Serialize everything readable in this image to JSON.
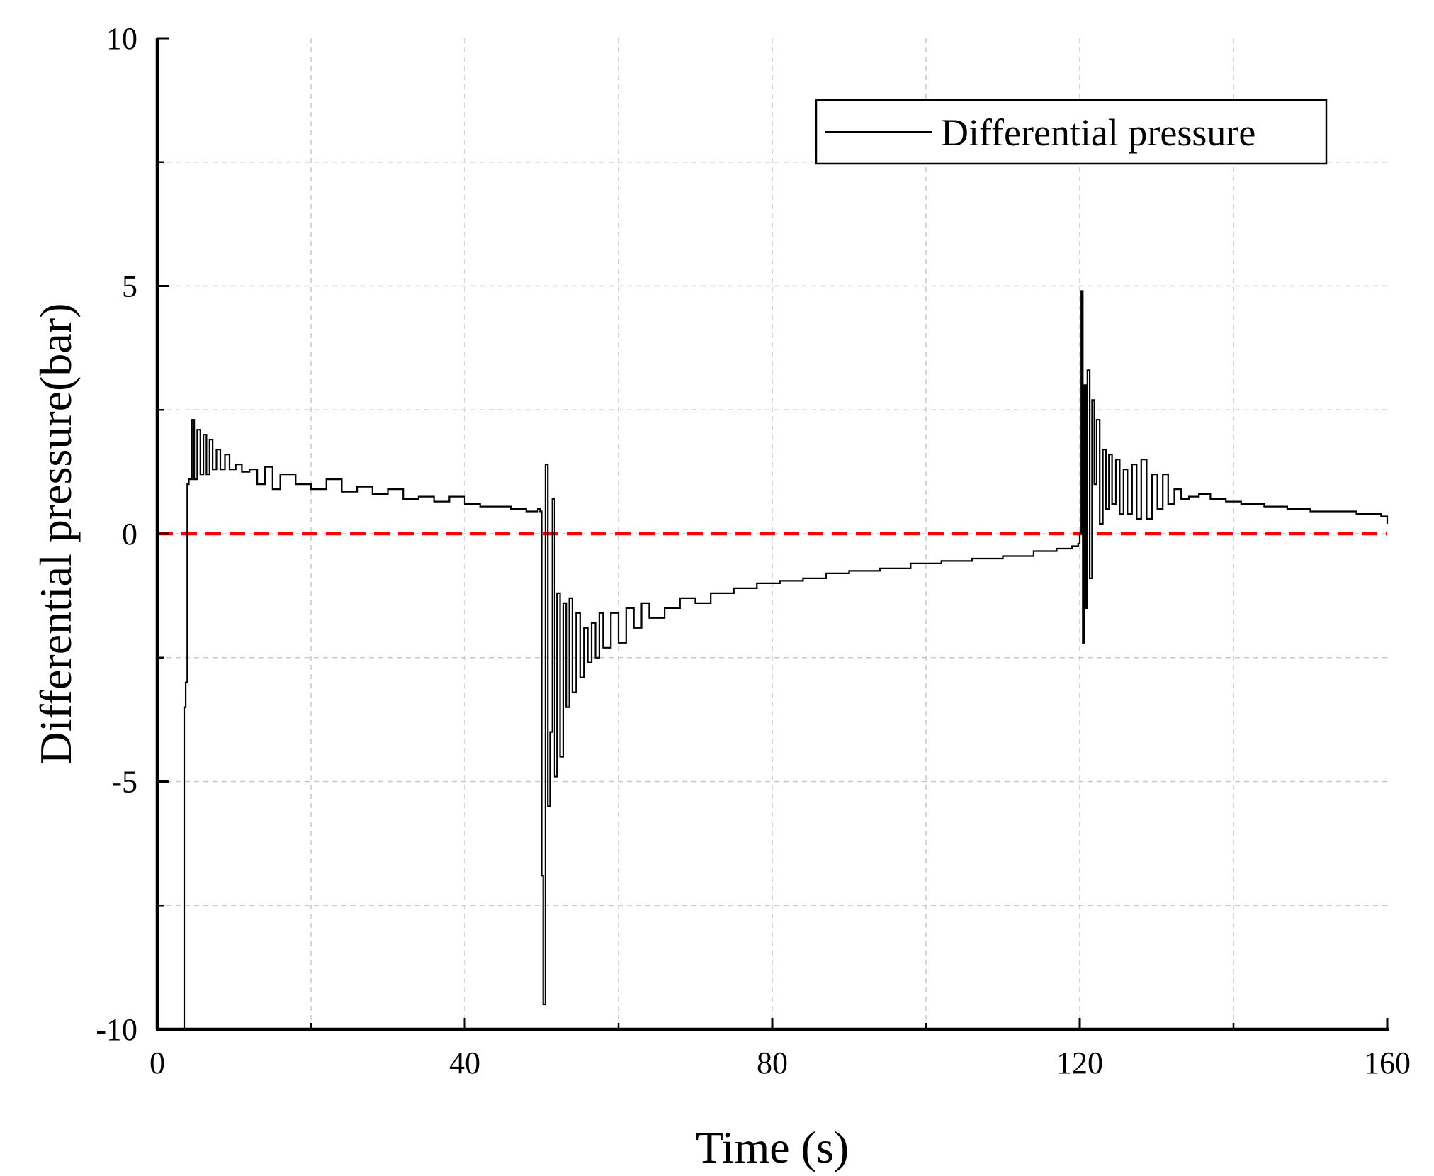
{
  "chart_data": {
    "type": "line",
    "title": "",
    "xlabel": "Time (s)",
    "ylabel": "Differential pressure(bar)",
    "xlim": [
      0,
      160
    ],
    "ylim": [
      -10,
      10
    ],
    "x_ticks": [
      0,
      40,
      80,
      120,
      160
    ],
    "y_ticks": [
      -10,
      -5,
      0,
      5,
      10
    ],
    "x_minor_ticks": [
      20,
      60,
      100,
      140
    ],
    "y_minor_ticks": [
      -7.5,
      -2.5,
      2.5,
      7.5
    ],
    "grid": true,
    "legend_position": "top-right",
    "reference_line": {
      "y": 0,
      "color": "#ff0000",
      "style": "dashed"
    },
    "series": [
      {
        "name": "Differential pressure",
        "color": "#000000",
        "x": [
          0,
          3.4,
          3.5,
          3.7,
          3.9,
          4.1,
          4.5,
          4.8,
          5.2,
          5.6,
          6.0,
          6.4,
          6.8,
          7.2,
          7.7,
          8.2,
          8.8,
          9.4,
          10.2,
          11.0,
          12.0,
          13.0,
          14.0,
          15.0,
          16.0,
          18.0,
          20.0,
          22.0,
          24.0,
          26.0,
          28.0,
          30.0,
          32.0,
          34.0,
          36.0,
          38.0,
          40.0,
          42.0,
          44.0,
          46.0,
          48.0,
          49.5,
          49.8,
          50.0,
          50.2,
          50.5,
          50.8,
          51.1,
          51.4,
          51.7,
          52.0,
          52.4,
          52.8,
          53.2,
          53.6,
          54.0,
          54.5,
          55.0,
          55.5,
          56.0,
          56.5,
          57.0,
          57.5,
          58.0,
          59.0,
          60.0,
          61.0,
          62.0,
          63.0,
          64.0,
          66.0,
          68.0,
          70.0,
          72.0,
          75.0,
          78.0,
          81.0,
          84.0,
          87.0,
          90.0,
          94.0,
          98.0,
          102.0,
          106.0,
          110.0,
          114.0,
          117.0,
          119.0,
          119.8,
          120.0,
          120.2,
          120.4,
          120.6,
          120.8,
          121.0,
          121.3,
          121.6,
          121.9,
          122.2,
          122.6,
          123.0,
          123.4,
          123.8,
          124.2,
          124.7,
          125.2,
          125.7,
          126.2,
          126.8,
          127.4,
          128.0,
          128.7,
          129.4,
          130.1,
          130.8,
          131.5,
          132.3,
          133.2,
          134.2,
          135.5,
          137.0,
          139.0,
          141.0,
          144.0,
          147.0,
          150.0,
          153.0,
          156.0,
          158.5,
          159.2,
          160.0
        ],
        "y": [
          -10,
          -10,
          -3.5,
          -3.0,
          1.0,
          1.1,
          2.3,
          1.1,
          2.1,
          1.2,
          2.0,
          1.2,
          1.9,
          1.3,
          1.7,
          1.3,
          1.6,
          1.3,
          1.4,
          1.25,
          1.3,
          1.0,
          1.35,
          0.9,
          1.2,
          1.0,
          0.9,
          1.1,
          0.85,
          0.95,
          0.8,
          0.9,
          0.7,
          0.75,
          0.65,
          0.75,
          0.6,
          0.55,
          0.55,
          0.5,
          0.45,
          0.5,
          0.45,
          -6.9,
          -9.5,
          1.4,
          -5.5,
          -4.0,
          0.7,
          -4.9,
          -1.2,
          -4.5,
          -1.4,
          -3.5,
          -1.3,
          -3.2,
          -1.6,
          -2.9,
          -1.9,
          -2.6,
          -1.8,
          -2.5,
          -1.6,
          -2.3,
          -1.6,
          -2.2,
          -1.5,
          -1.9,
          -1.4,
          -1.7,
          -1.5,
          -1.3,
          -1.4,
          -1.2,
          -1.1,
          -1.0,
          -0.95,
          -0.9,
          -0.8,
          -0.75,
          -0.7,
          -0.6,
          -0.55,
          -0.5,
          -0.45,
          -0.35,
          -0.3,
          -0.25,
          -0.2,
          0.0,
          4.9,
          -2.2,
          3.0,
          -1.5,
          3.3,
          -0.9,
          2.7,
          1.0,
          2.3,
          0.2,
          1.7,
          0.5,
          1.6,
          0.6,
          1.5,
          0.4,
          1.3,
          0.4,
          1.4,
          0.3,
          1.5,
          0.3,
          1.2,
          0.5,
          1.2,
          0.6,
          0.9,
          0.7,
          0.75,
          0.8,
          0.7,
          0.65,
          0.6,
          0.55,
          0.5,
          0.45,
          0.45,
          0.4,
          0.4,
          0.35,
          0.2
        ]
      }
    ]
  }
}
